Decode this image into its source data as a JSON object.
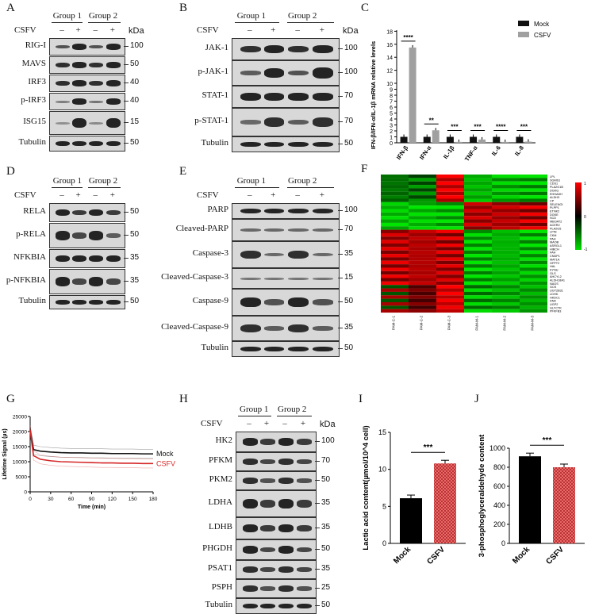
{
  "panels": {
    "A": {
      "label": "A",
      "group1": "Group 1",
      "group2": "Group 2",
      "csfv": "CSFV",
      "minus": "–",
      "plus": "+",
      "kda": "kDa",
      "rows": [
        {
          "name": "RIG-I",
          "kda": "100"
        },
        {
          "name": "MAVS",
          "kda": "50"
        },
        {
          "name": "IRF3",
          "kda": "40"
        },
        {
          "name": "p-IRF3",
          "kda": "40"
        },
        {
          "name": "ISG15",
          "kda": "15"
        },
        {
          "name": "Tubulin",
          "kda": "50"
        }
      ]
    },
    "B": {
      "label": "B",
      "group1": "Group 1",
      "group2": "Group 2",
      "csfv": "CSFV",
      "minus": "–",
      "plus": "+",
      "kda": "kDa",
      "rows": [
        {
          "name": "JAK-1",
          "kda": "100"
        },
        {
          "name": "p-JAK-1",
          "kda": "100"
        },
        {
          "name": "STAT-1",
          "kda": "70"
        },
        {
          "name": "p-STAT-1",
          "kda": "70"
        },
        {
          "name": "Tubulin",
          "kda": "50"
        }
      ]
    },
    "C": {
      "label": "C"
    },
    "D": {
      "label": "D",
      "group1": "Group 1",
      "group2": "Group 2",
      "csfv": "CSFV",
      "minus": "–",
      "plus": "+",
      "rows": [
        {
          "name": "RELA",
          "kda": "50"
        },
        {
          "name": "p-RELA",
          "kda": "50"
        },
        {
          "name": "NFKBIA",
          "kda": "35"
        },
        {
          "name": "p-NFKBIA",
          "kda": "35"
        },
        {
          "name": "Tubulin",
          "kda": "50"
        }
      ]
    },
    "E": {
      "label": "E",
      "group1": "Group 1",
      "group2": "Group 2",
      "csfv": "CSFV",
      "minus": "–",
      "plus": "+",
      "rows": [
        {
          "name": "PARP",
          "kda": "100"
        },
        {
          "name": "Cleaved-PARP",
          "kda": "70"
        },
        {
          "name": "Caspase-3",
          "kda": "35"
        },
        {
          "name": "Cleaved-Caspase-3",
          "kda": "15"
        },
        {
          "name": "Caspase-9",
          "kda": "50"
        },
        {
          "name": "Cleaved-Caspase-9",
          "kda": "35"
        },
        {
          "name": "Tubulin",
          "kda": "50"
        }
      ]
    },
    "F": {
      "label": "F",
      "legend": [
        "1",
        "0",
        "-1"
      ],
      "genes": [
        "LPL",
        "SGMS1",
        "CDS1",
        "PLA2G1B",
        "DGKG",
        "EHHADH",
        "ALDH3",
        "CP",
        "SELENOI",
        "PLPP1",
        "ETNK2",
        "DGKE",
        "SCD",
        "MBOAT2",
        "ACER2",
        "PLA2G5",
        "LPIN",
        "CKM",
        "PAH",
        "MAOB",
        "ASRGL1",
        "HIBCH",
        "FAH",
        "CNDP1",
        "MAT1A",
        "GFPT2",
        "HAL",
        "KYNU",
        "GLS",
        "AHCYL2",
        "ALDH18A1",
        "NAGS",
        "GCK",
        "UGT2B31",
        "LDHD",
        "HKDC1",
        "DNK",
        "UGP2",
        "GLYCTK",
        "PFKFB3"
      ],
      "samples": [
        "PAM-C-1",
        "PAM-C-2",
        "PAM-C-3",
        "PAM-M-1",
        "PAM-M-2",
        "PAM-M-3"
      ]
    },
    "G": {
      "label": "G",
      "ylabel": "Lifetime Signal (µs)",
      "xlabel": "Time (min)",
      "mock": "Mock",
      "csfv": "CSFV"
    },
    "H": {
      "label": "H",
      "group1": "Group 1",
      "group2": "Group 2",
      "csfv": "CSFV",
      "minus": "–",
      "plus": "+",
      "kda": "kDa",
      "rows": [
        {
          "name": "HK2",
          "kda": "100"
        },
        {
          "name": "PFKM",
          "kda": "70"
        },
        {
          "name": "PKM2",
          "kda": "50"
        },
        {
          "name": "LDHA",
          "kda": "35"
        },
        {
          "name": "LDHB",
          "kda": "35"
        },
        {
          "name": "PHGDH",
          "kda": "50"
        },
        {
          "name": "PSAT1",
          "kda": "35"
        },
        {
          "name": "PSPH",
          "kda": "25"
        },
        {
          "name": "Tubulin",
          "kda": "50"
        }
      ]
    },
    "I": {
      "label": "I"
    },
    "J": {
      "label": "J"
    }
  },
  "chart_data": [
    {
      "panel": "C",
      "type": "bar",
      "ylabel": "IFN-β/IFN-α/IL-1β mRNA relative levels",
      "categories": [
        "IFN-β",
        "IFN-α",
        "IL-1β",
        "TNF-α",
        "IL-6",
        "IL-8"
      ],
      "series": [
        {
          "name": "Mock",
          "values": [
            1.0,
            1.0,
            1.0,
            1.0,
            1.0,
            1.0
          ],
          "color": "#111111"
        },
        {
          "name": "CSFV",
          "values": [
            15.5,
            2.1,
            0.15,
            0.55,
            0.15,
            0.2
          ],
          "color": "#a0a0a0"
        }
      ],
      "significance": [
        "****",
        "**",
        "***",
        "***",
        "****",
        "***"
      ],
      "ylim": [
        0,
        17
      ],
      "yticks": [
        "0",
        "1",
        "2",
        "3",
        "4",
        "5",
        "6",
        "7",
        "8",
        "9",
        "10",
        "12",
        "14",
        "16",
        "18"
      ]
    },
    {
      "panel": "G",
      "type": "line",
      "xlabel": "Time (min)",
      "ylabel": "Lifetime Signal (µs)",
      "x": [
        0,
        5,
        15,
        30,
        45,
        60,
        75,
        90,
        105,
        120,
        135,
        150,
        165,
        180
      ],
      "series": [
        {
          "name": "Mock",
          "values": [
            20500,
            14000,
            13500,
            13200,
            13000,
            12900,
            12900,
            12800,
            12800,
            12700,
            12700,
            12700,
            12600,
            12600
          ],
          "color": "#111111"
        },
        {
          "name": "CSFV",
          "values": [
            20500,
            12000,
            10800,
            10300,
            10000,
            9900,
            9800,
            9700,
            9600,
            9600,
            9500,
            9500,
            9400,
            9400
          ],
          "color": "#d62728"
        }
      ],
      "xticks": [
        "0",
        "30",
        "60",
        "90",
        "120",
        "150",
        "180"
      ],
      "yticks": [
        "0",
        "5000",
        "10000",
        "15000",
        "20000",
        "25000"
      ],
      "ylim": [
        0,
        25000
      ],
      "xlim": [
        0,
        180
      ]
    },
    {
      "panel": "I",
      "type": "bar",
      "ylabel": "Lactic acid content(µmol/10^4 cell)",
      "categories": [
        "Mock",
        "CSFV"
      ],
      "values": [
        6.1,
        10.8
      ],
      "significance": "***",
      "ylim": [
        0,
        15
      ],
      "yticks": [
        "0",
        "5",
        "10",
        "15"
      ]
    },
    {
      "panel": "J",
      "type": "bar",
      "ylabel": "3-phosphoglyceraldehyde content",
      "categories": [
        "Mock",
        "CSFV"
      ],
      "values": [
        915,
        800
      ],
      "significance": "***",
      "ylim": [
        0,
        1000
      ],
      "yticks": [
        "0",
        "200",
        "400",
        "600",
        "800",
        "1000"
      ]
    }
  ],
  "colors": {
    "mock": "#111111",
    "csfv_gray": "#a0a0a0",
    "csfv_red": "#d62728",
    "heat_hi": "#ff0000",
    "heat_lo": "#00cc00"
  }
}
